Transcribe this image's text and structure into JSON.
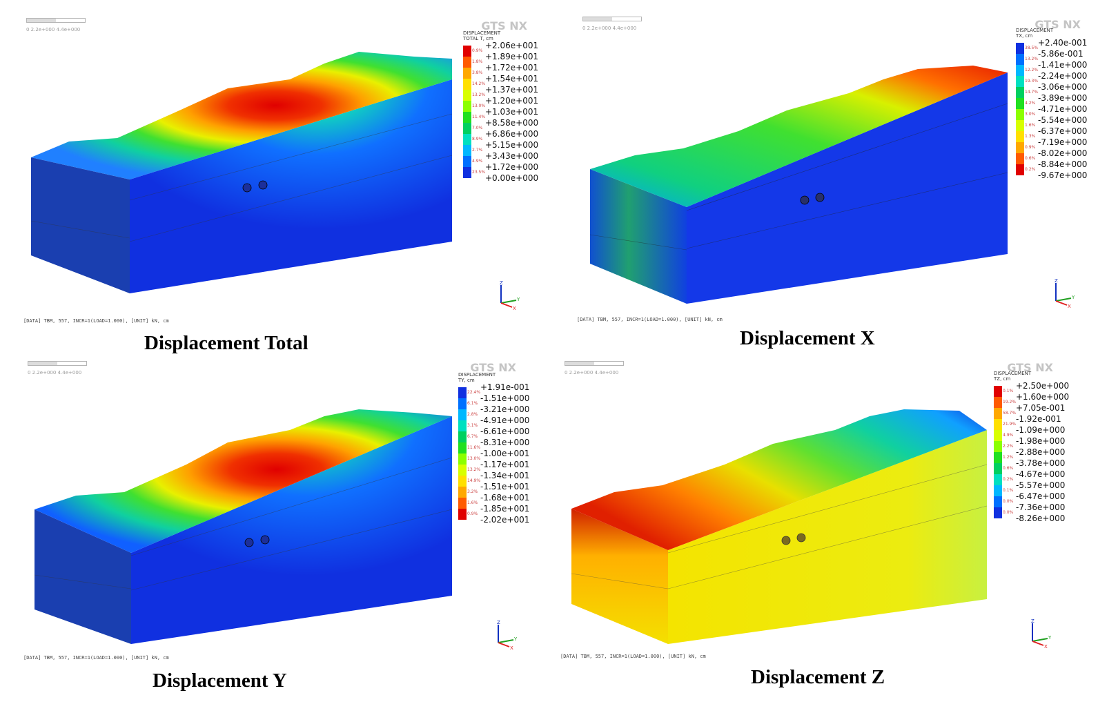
{
  "figure": {
    "logo": "GTS NX",
    "scale_ticks": "0        2.2e+000  4.4e+000",
    "footer": "[DATA] TBM, 557, INCR=1(LOAD=1.000), [UNIT] kN, cm",
    "panels": [
      {
        "caption": "Displacement Total",
        "legend_title": "DISPLACEMENT\nTOTAL T, cm",
        "colors": [
          "#e00000",
          "#ff5a00",
          "#ffa800",
          "#ffe000",
          "#d8ff00",
          "#8cff00",
          "#20e020",
          "#00d060",
          "#00e0c0",
          "#00b8ff",
          "#0070ff",
          "#1030e0"
        ],
        "percents": [
          "0.9%",
          "1.8%",
          "3.8%",
          "14.2%",
          "13.2%",
          "13.0%",
          "11.4%",
          "7.0%",
          "8.9%",
          "2.7%",
          "4.9%",
          "23.5%"
        ],
        "values": [
          "+2.06e+001",
          "+1.89e+001",
          "+1.72e+001",
          "+1.54e+001",
          "+1.37e+001",
          "+1.20e+001",
          "+1.03e+001",
          "+8.58e+000",
          "+6.86e+000",
          "+5.15e+000",
          "+3.43e+000",
          "+1.72e+000",
          "+0.00e+000"
        ]
      },
      {
        "caption": "Displacement X",
        "legend_title": "DISPLACEMENT\nTX, cm",
        "colors": [
          "#1030e0",
          "#0070ff",
          "#00b8ff",
          "#00e0c0",
          "#00d060",
          "#20e020",
          "#8cff00",
          "#d8ff00",
          "#ffe000",
          "#ffa800",
          "#ff5a00",
          "#e00000"
        ],
        "percents": [
          "38.5%",
          "13.2%",
          "12.2%",
          "19.3%",
          "14.7%",
          "4.2%",
          "3.0%",
          "1.6%",
          "1.3%",
          "0.9%",
          "0.6%",
          "0.2%"
        ],
        "values": [
          "+2.40e-001",
          "-5.86e-001",
          "-1.41e+000",
          "-2.24e+000",
          "-3.06e+000",
          "-3.89e+000",
          "-4.71e+000",
          "-5.54e+000",
          "-6.37e+000",
          "-7.19e+000",
          "-8.02e+000",
          "-8.84e+000",
          "-9.67e+000"
        ]
      },
      {
        "caption": "Displacement Y",
        "legend_title": "DISPLACEMENT\nTY, cm",
        "colors": [
          "#1030e0",
          "#0070ff",
          "#00b8ff",
          "#00e0c0",
          "#00d060",
          "#20e020",
          "#8cff00",
          "#d8ff00",
          "#ffe000",
          "#ffa800",
          "#ff5a00",
          "#e00000"
        ],
        "percents": [
          "22.4%",
          "6.1%",
          "2.8%",
          "3.1%",
          "6.7%",
          "11.6%",
          "13.0%",
          "13.2%",
          "14.9%",
          "3.2%",
          "1.6%",
          "0.9%"
        ],
        "values": [
          "+1.91e-001",
          "-1.51e+000",
          "-3.21e+000",
          "-4.91e+000",
          "-6.61e+000",
          "-8.31e+000",
          "-1.00e+001",
          "-1.17e+001",
          "-1.34e+001",
          "-1.51e+001",
          "-1.68e+001",
          "-1.85e+001",
          "-2.02e+001"
        ]
      },
      {
        "caption": "Displacement Z",
        "legend_title": "DISPLACEMENT\nTZ, cm",
        "colors": [
          "#e00000",
          "#ff5a00",
          "#ffa800",
          "#ffe000",
          "#d8ff00",
          "#8cff00",
          "#20e020",
          "#00d060",
          "#00e0c0",
          "#00b8ff",
          "#0070ff",
          "#1030e0"
        ],
        "percents": [
          "0.1%",
          "19.2%",
          "58.7%",
          "21.9%",
          "4.9%",
          "2.2%",
          "1.2%",
          "0.6%",
          "0.2%",
          "0.1%",
          "0.0%",
          "0.0%"
        ],
        "values": [
          "+2.50e+000",
          "+1.60e+000",
          "+7.05e-001",
          "-1.92e-001",
          "-1.09e+000",
          "-1.98e+000",
          "-2.88e+000",
          "-3.78e+000",
          "-4.67e+000",
          "-5.57e+000",
          "-6.47e+000",
          "-7.36e+000",
          "-8.26e+000"
        ]
      }
    ]
  }
}
